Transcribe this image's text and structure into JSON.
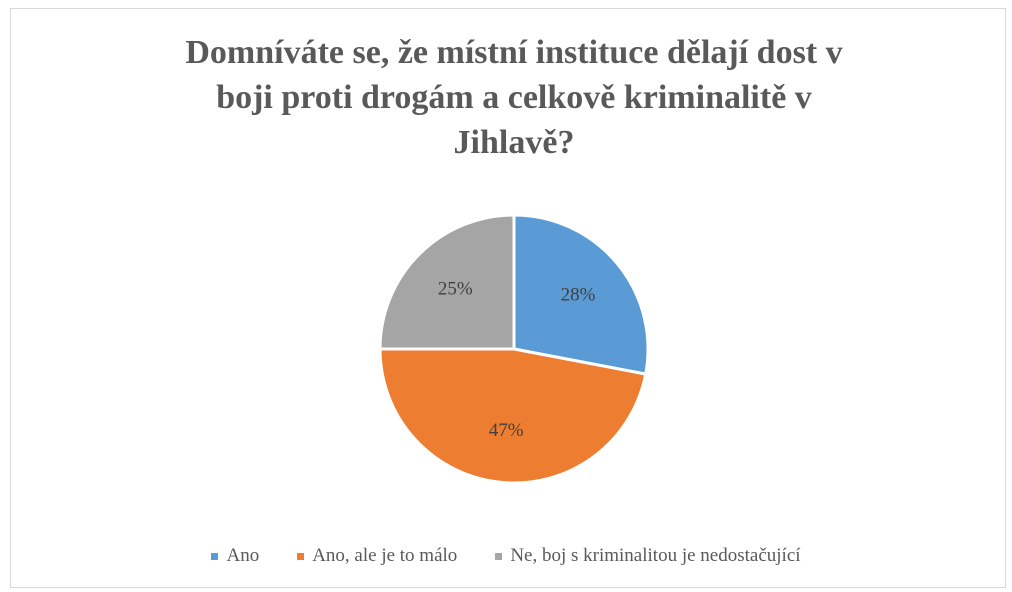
{
  "chart_data": {
    "type": "pie",
    "title": "Domníváte se, že místní instituce dělají dost v boji proti drogám a celkově kriminalitě v Jihlavě?",
    "categories": [
      "Ano",
      "Ano, ale je to málo",
      "Ne, boj s kriminalitou je nedostačující"
    ],
    "values": [
      28,
      47,
      25
    ],
    "value_labels": [
      "28%",
      "47%",
      "25%"
    ],
    "colors": [
      "#5b9bd5",
      "#ed7d31",
      "#a5a5a5"
    ],
    "legend": "bottom"
  }
}
